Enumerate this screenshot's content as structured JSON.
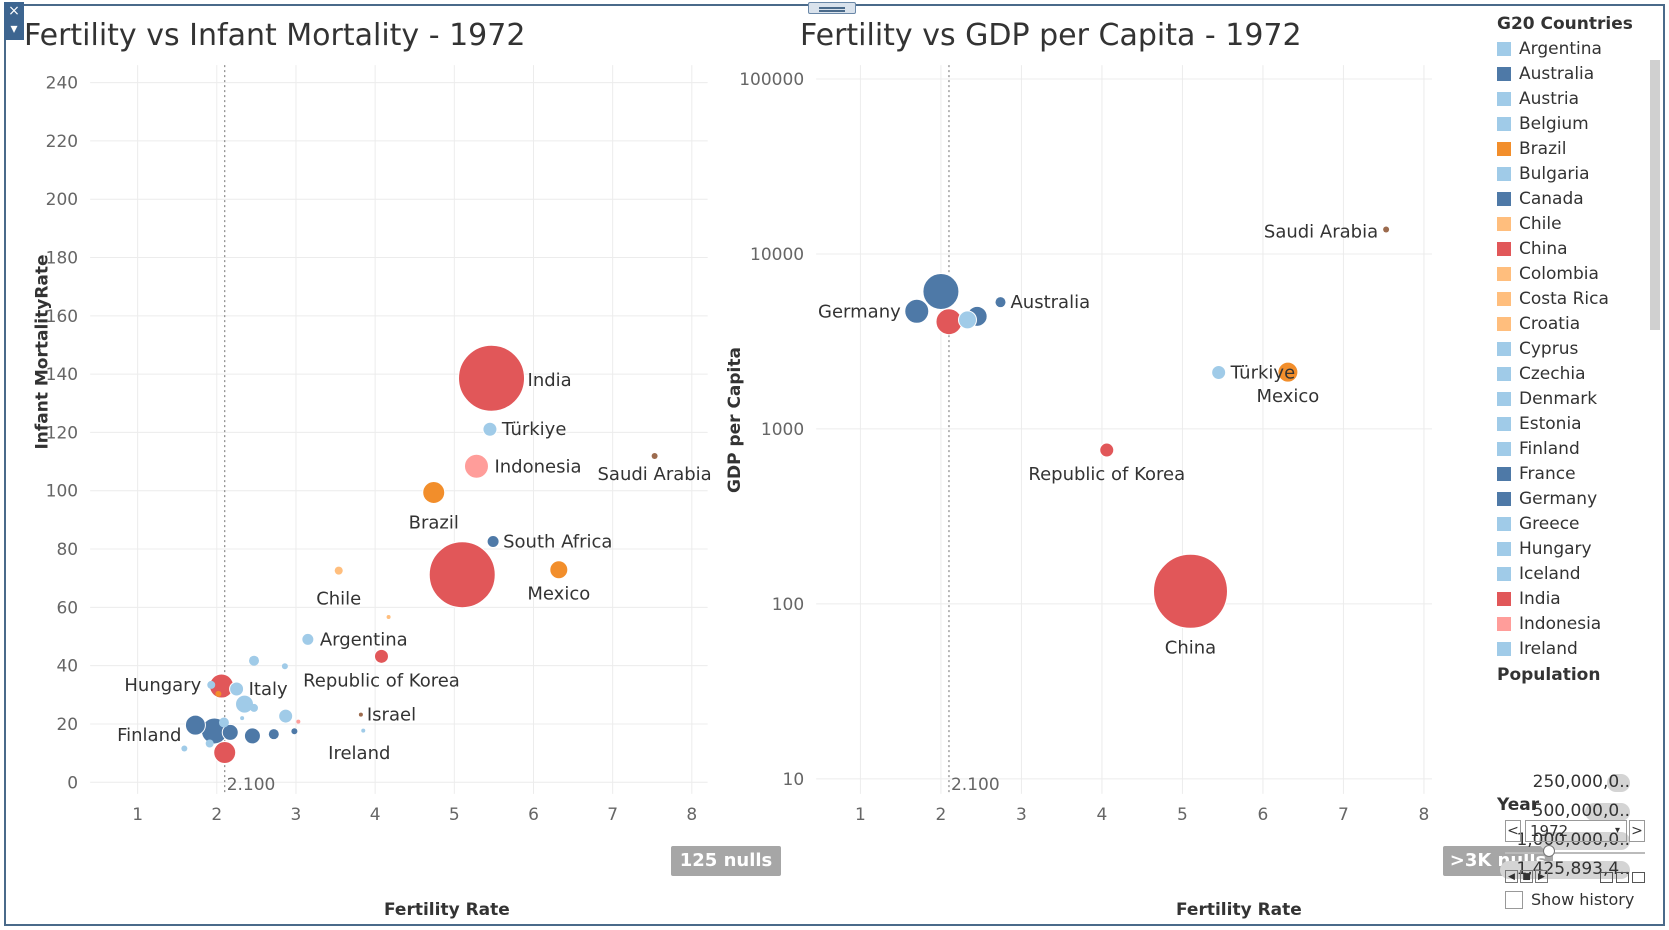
{
  "charts": [
    {
      "title": "Fertility vs Infant Mortality - 1972",
      "xlabel": "Fertility Rate",
      "ylabel": "Infant MortalityRate",
      "nulls": "125 nulls",
      "ref_label": "2.100"
    },
    {
      "title": "Fertility vs GDP per Capita - 1972",
      "xlabel": "Fertility Rate",
      "ylabel": "GDP per Capita",
      "nulls": ">3K nulls",
      "ref_label": "2.100"
    }
  ],
  "chart_data": [
    {
      "type": "scatter",
      "title": "Fertility vs Infant Mortality - 1972",
      "xlabel": "Fertility Rate",
      "ylabel": "Infant MortalityRate",
      "xlim": [
        0.4,
        8.2
      ],
      "ylim": [
        -4,
        246
      ],
      "x_ticks": [
        1,
        2,
        3,
        4,
        5,
        6,
        7,
        8
      ],
      "y_ticks": [
        0,
        20,
        40,
        60,
        80,
        100,
        120,
        140,
        160,
        180,
        200,
        220,
        240
      ],
      "grid": true,
      "reference_line": {
        "x": 2.1,
        "label": "2.100"
      },
      "points": [
        {
          "label": "India",
          "x": 5.47,
          "y": 138.6,
          "color": "#e15759",
          "r": 33
        },
        {
          "label": "Türkiye",
          "x": 5.45,
          "y": 121.1,
          "color": "#a0cbe8",
          "r": 7
        },
        {
          "label": "Indonesia",
          "x": 5.28,
          "y": 108.4,
          "color": "#ff9d9a",
          "r": 12
        },
        {
          "label": "Saudi Arabia",
          "x": 7.53,
          "y": 111.9,
          "color": "#9c6b4e",
          "r": 3
        },
        {
          "label": "Brazil",
          "x": 4.74,
          "y": 99.4,
          "color": "#f28e2b",
          "r": 11
        },
        {
          "label": "South Africa",
          "x": 5.49,
          "y": 82.6,
          "color": "#4e79a7",
          "r": 6
        },
        {
          "label": "China",
          "x": 5.1,
          "y": 71.2,
          "color": "#e15759",
          "r": 33
        },
        {
          "label": "Mexico",
          "x": 6.32,
          "y": 72.9,
          "color": "#f28e2b",
          "r": 9
        },
        {
          "label": "Chile",
          "x": 3.54,
          "y": 72.6,
          "color": "#ffbe7d",
          "r": 4
        },
        {
          "label": "Argentina",
          "x": 3.15,
          "y": 49.0,
          "color": "#a0cbe8",
          "r": 6
        },
        {
          "label": "Republic of Korea",
          "x": 4.08,
          "y": 43.2,
          "color": "#e15759",
          "r": 7
        },
        {
          "label": "Hungary",
          "x": 1.93,
          "y": 33.4,
          "color": "#a0cbe8",
          "r": 4
        },
        {
          "label": "Italy",
          "x": 2.25,
          "y": 32.0,
          "color": "#a0cbe8",
          "r": 7
        },
        {
          "label": "Israel",
          "x": 3.82,
          "y": 23.2,
          "color": "#9c6b4e",
          "r": 2
        },
        {
          "label": "Finland",
          "x": 1.59,
          "y": 11.6,
          "color": "#a0cbe8",
          "r": 3
        },
        {
          "label": "Ireland",
          "x": 3.85,
          "y": 17.7,
          "color": "#a0cbe8",
          "r": 2
        },
        {
          "label": "",
          "x": 2.06,
          "y": 33.0,
          "color": "#e15759",
          "r": 12
        },
        {
          "label": "",
          "x": 2.47,
          "y": 41.7,
          "color": "#a0cbe8",
          "r": 5
        },
        {
          "label": "",
          "x": 2.86,
          "y": 39.8,
          "color": "#a0cbe8",
          "r": 3
        },
        {
          "label": "",
          "x": 4.17,
          "y": 56.7,
          "color": "#ffbe7d",
          "r": 2
        },
        {
          "label": "",
          "x": 2.35,
          "y": 26.8,
          "color": "#a0cbe8",
          "r": 9
        },
        {
          "label": "",
          "x": 2.47,
          "y": 25.5,
          "color": "#a0cbe8",
          "r": 4
        },
        {
          "label": "",
          "x": 2.87,
          "y": 22.7,
          "color": "#a0cbe8",
          "r": 7
        },
        {
          "label": "",
          "x": 1.73,
          "y": 19.6,
          "color": "#4e79a7",
          "r": 10
        },
        {
          "label": "",
          "x": 1.97,
          "y": 17.6,
          "color": "#4e79a7",
          "r": 13
        },
        {
          "label": "",
          "x": 2.17,
          "y": 17.1,
          "color": "#4e79a7",
          "r": 8
        },
        {
          "label": "",
          "x": 2.09,
          "y": 20.5,
          "color": "#a0cbe8",
          "r": 5
        },
        {
          "label": "",
          "x": 2.45,
          "y": 15.9,
          "color": "#4e79a7",
          "r": 8
        },
        {
          "label": "",
          "x": 2.72,
          "y": 16.5,
          "color": "#4e79a7",
          "r": 5
        },
        {
          "label": "",
          "x": 2.98,
          "y": 17.5,
          "color": "#4e79a7",
          "r": 3
        },
        {
          "label": "",
          "x": 2.1,
          "y": 10.2,
          "color": "#e15759",
          "r": 11
        },
        {
          "label": "",
          "x": 1.91,
          "y": 13.3,
          "color": "#a0cbe8",
          "r": 4
        },
        {
          "label": "",
          "x": 2.02,
          "y": 30.3,
          "color": "#f28e2b",
          "r": 3
        },
        {
          "label": "",
          "x": 2.32,
          "y": 22.0,
          "color": "#a0cbe8",
          "r": 2
        },
        {
          "label": "",
          "x": 3.03,
          "y": 20.8,
          "color": "#ff9d9a",
          "r": 2
        }
      ]
    },
    {
      "type": "scatter",
      "title": "Fertility vs GDP per Capita - 1972",
      "xlabel": "Fertility Rate",
      "ylabel": "GDP per Capita",
      "xlim": [
        0.45,
        8.1
      ],
      "ylim": [
        8.2,
        120000
      ],
      "y_scale": "log",
      "x_ticks": [
        1,
        2,
        3,
        4,
        5,
        6,
        7,
        8
      ],
      "y_ticks": [
        10,
        100,
        1000,
        10000,
        100000
      ],
      "grid": true,
      "reference_line": {
        "x": 2.1,
        "label": "2.100"
      },
      "points": [
        {
          "label": "Saudi Arabia",
          "x": 7.53,
          "y": 13800,
          "color": "#9c6b4e",
          "r": 3
        },
        {
          "label": "Germany",
          "x": 1.7,
          "y": 4700,
          "color": "#4e79a7",
          "r": 12
        },
        {
          "label": "Australia",
          "x": 2.74,
          "y": 5300,
          "color": "#4e79a7",
          "r": 5
        },
        {
          "label": "",
          "x": 2.0,
          "y": 6100,
          "color": "#4e79a7",
          "r": 18
        },
        {
          "label": "",
          "x": 2.1,
          "y": 4100,
          "color": "#e15759",
          "r": 13
        },
        {
          "label": "",
          "x": 2.33,
          "y": 4200,
          "color": "#a0cbe8",
          "r": 9
        },
        {
          "label": "",
          "x": 2.45,
          "y": 4400,
          "color": "#4e79a7",
          "r": 10
        },
        {
          "label": "Türkiye",
          "x": 5.45,
          "y": 2100,
          "color": "#a0cbe8",
          "r": 7
        },
        {
          "label": "Mexico",
          "x": 6.31,
          "y": 2110,
          "color": "#f28e2b",
          "r": 10
        },
        {
          "label": "Republic of Korea",
          "x": 4.06,
          "y": 757,
          "color": "#e15759",
          "r": 7
        },
        {
          "label": "China",
          "x": 5.1,
          "y": 118,
          "color": "#e15759",
          "r": 37
        }
      ]
    }
  ],
  "legend": {
    "title": "G20 Countries",
    "items": [
      {
        "label": "Argentina",
        "color": "#a0cbe8"
      },
      {
        "label": "Australia",
        "color": "#4e79a7"
      },
      {
        "label": "Austria",
        "color": "#a0cbe8"
      },
      {
        "label": "Belgium",
        "color": "#a0cbe8"
      },
      {
        "label": "Brazil",
        "color": "#f28e2b"
      },
      {
        "label": "Bulgaria",
        "color": "#a0cbe8"
      },
      {
        "label": "Canada",
        "color": "#4e79a7"
      },
      {
        "label": "Chile",
        "color": "#ffbe7d"
      },
      {
        "label": "China",
        "color": "#e15759"
      },
      {
        "label": "Colombia",
        "color": "#ffbe7d"
      },
      {
        "label": "Costa Rica",
        "color": "#ffbe7d"
      },
      {
        "label": "Croatia",
        "color": "#ffbe7d"
      },
      {
        "label": "Cyprus",
        "color": "#a0cbe8"
      },
      {
        "label": "Czechia",
        "color": "#a0cbe8"
      },
      {
        "label": "Denmark",
        "color": "#a0cbe8"
      },
      {
        "label": "Estonia",
        "color": "#a0cbe8"
      },
      {
        "label": "Finland",
        "color": "#a0cbe8"
      },
      {
        "label": "France",
        "color": "#4e79a7"
      },
      {
        "label": "Germany",
        "color": "#4e79a7"
      },
      {
        "label": "Greece",
        "color": "#a0cbe8"
      },
      {
        "label": "Hungary",
        "color": "#a0cbe8"
      },
      {
        "label": "Iceland",
        "color": "#a0cbe8"
      },
      {
        "label": "India",
        "color": "#e15759"
      },
      {
        "label": "Indonesia",
        "color": "#ff9d9a"
      },
      {
        "label": "Ireland",
        "color": "#a0cbe8"
      }
    ]
  },
  "population": {
    "title": "Population",
    "items": [
      {
        "label": "250,000,0..",
        "fill": 0.18
      },
      {
        "label": "500,000,0..",
        "fill": 0.35
      },
      {
        "label": "1,000,000,0..",
        "fill": 0.7
      },
      {
        "label": "1,425,893,4..",
        "fill": 1.0
      }
    ]
  },
  "year": {
    "title": "Year",
    "value": "1972",
    "prev": "<",
    "next": ">",
    "caret": "▾"
  },
  "controls": {
    "show_history": "Show history",
    "close": "×",
    "menu": "▾",
    "play_back": "◀",
    "play_stop": "■",
    "play_fwd": "▶"
  }
}
